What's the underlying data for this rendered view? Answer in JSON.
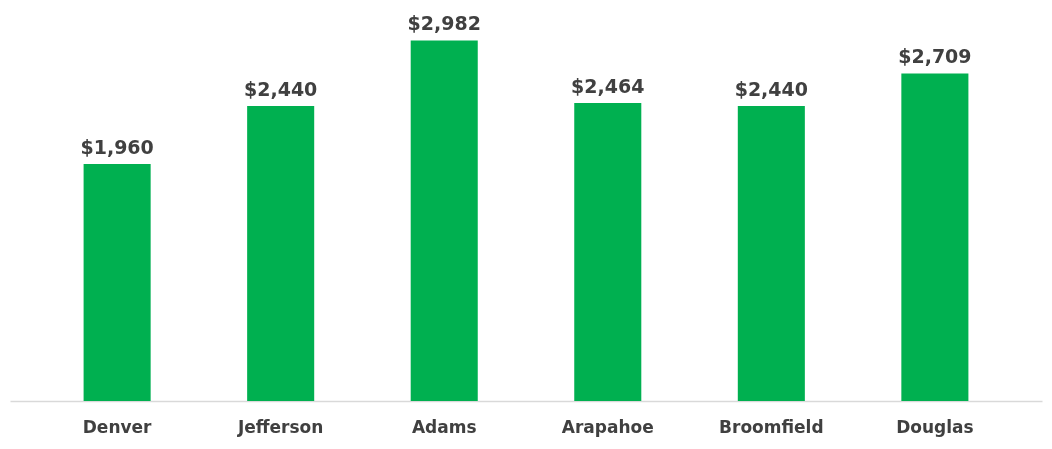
{
  "chart_data": {
    "type": "bar",
    "categories": [
      "Denver",
      "Jefferson",
      "Adams",
      "Arapahoe",
      "Broomfield",
      "Douglas"
    ],
    "values": [
      1960,
      2440,
      2982,
      2464,
      2440,
      2709
    ],
    "value_labels": [
      "$1,960",
      "$2,440",
      "$2,982",
      "$2,464",
      "$2,440",
      "$2,709"
    ],
    "color": "#00b050"
  }
}
